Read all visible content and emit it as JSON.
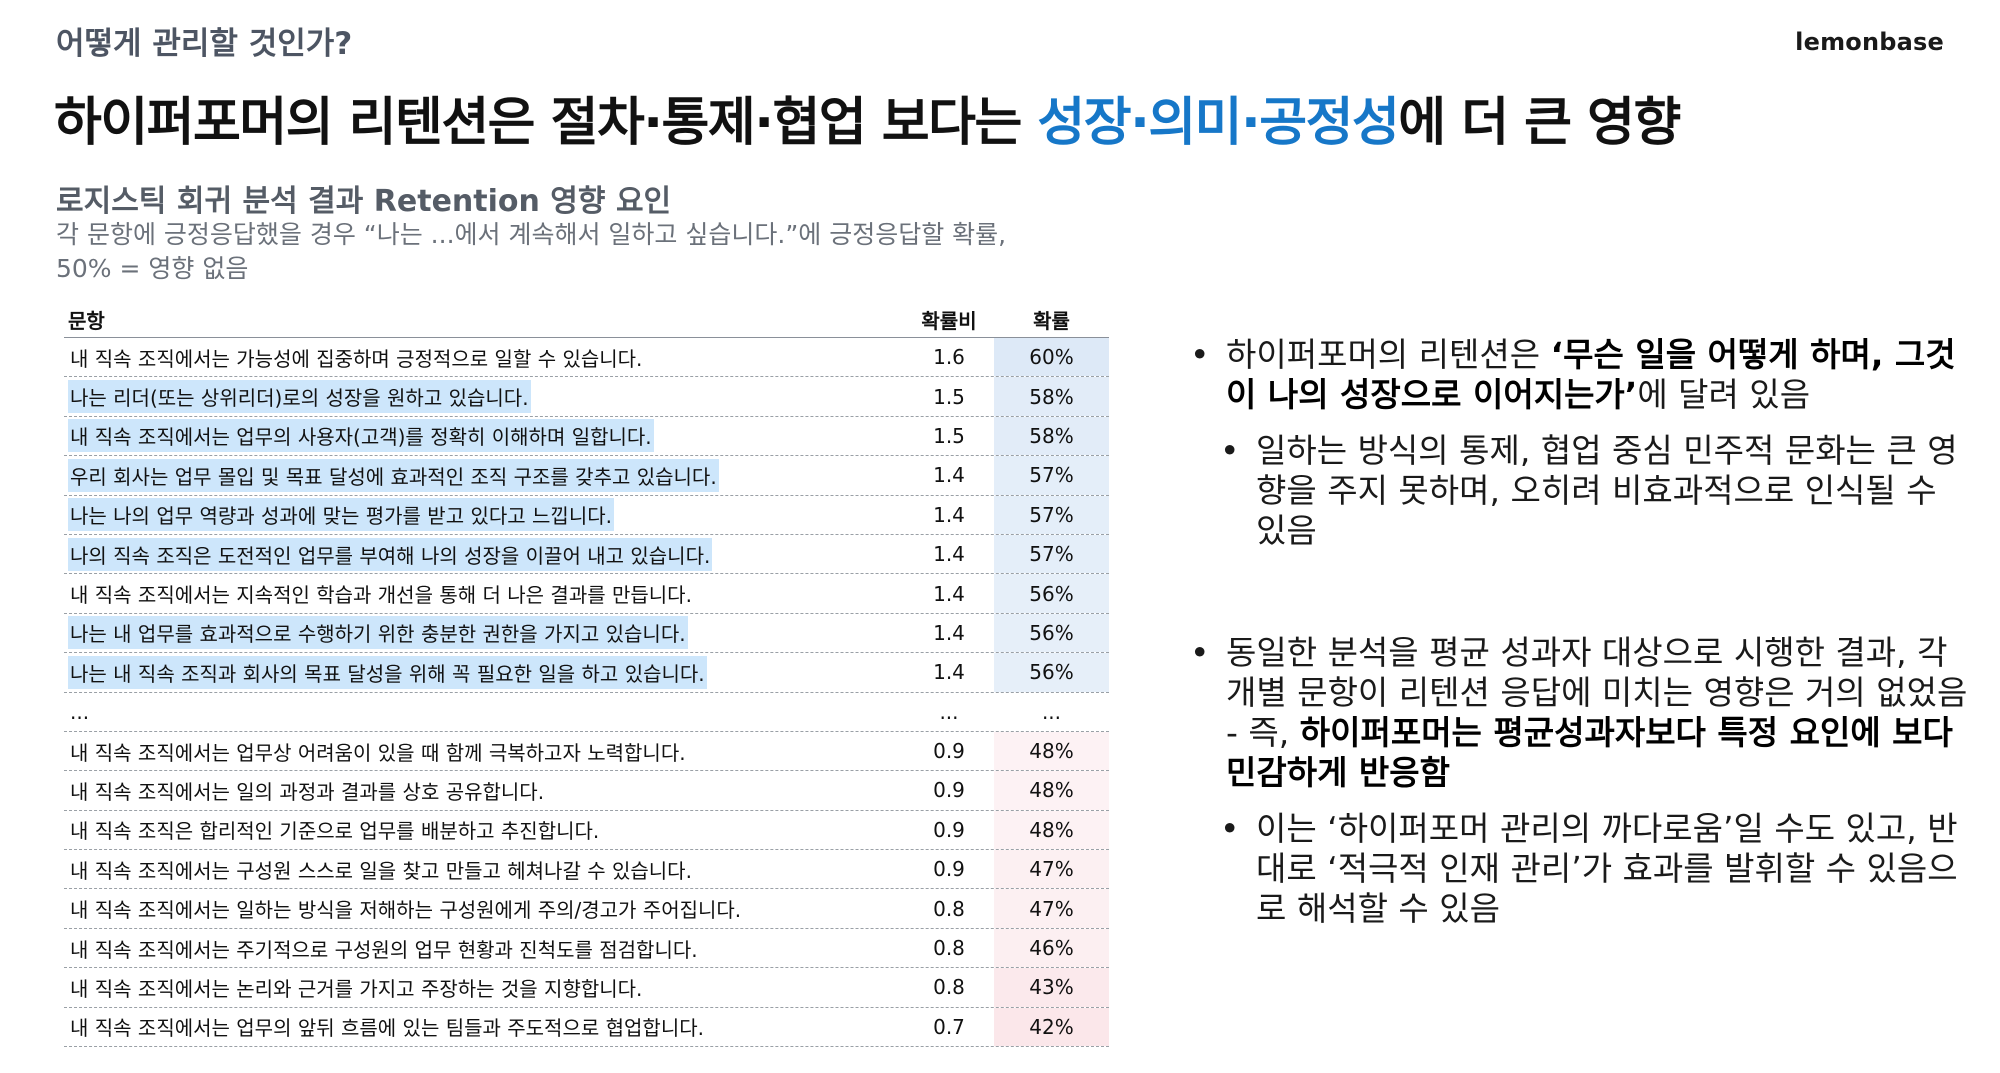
{
  "header": {
    "section_label": "어떻게 관리할 것인가?",
    "brand": "lemonbase",
    "headline_part1": "하이퍼포머의 리텐션은 절차·통제·협업 보다는 ",
    "headline_highlight": "성장·의미·공정성",
    "headline_part2": "에 더 큰 영향"
  },
  "analysis": {
    "subtitle": "로지스틱 회귀 분석 결과 Retention 영향 요인",
    "desc_line1": "각 문항에 긍정응답했을 경우 “나는 ...에서 계속해서 일하고 싶습니다.”에 긍정응답할 확률,",
    "desc_line2": "50% = 영향 없음"
  },
  "table": {
    "headers": {
      "question": "문항",
      "odds": "확률비",
      "prob": "확률"
    },
    "rows": [
      {
        "q": "내 직속 조직에서는 가능성에 집중하며 긍정적으로 일할 수 있습니다.",
        "odds": "1.6",
        "prob": "60%",
        "p": 60,
        "hl": false
      },
      {
        "q": "나는 리더(또는 상위리더)로의 성장을 원하고 있습니다.",
        "odds": "1.5",
        "prob": "58%",
        "p": 58,
        "hl": true
      },
      {
        "q": "내 직속 조직에서는 업무의 사용자(고객)를 정확히 이해하며 일합니다.",
        "odds": "1.5",
        "prob": "58%",
        "p": 58,
        "hl": true
      },
      {
        "q": "우리 회사는 업무 몰입 및 목표 달성에 효과적인 조직 구조를 갖추고 있습니다.",
        "odds": "1.4",
        "prob": "57%",
        "p": 57,
        "hl": true
      },
      {
        "q": "나는 나의 업무 역량과 성과에 맞는 평가를 받고 있다고 느낍니다.",
        "odds": "1.4",
        "prob": "57%",
        "p": 57,
        "hl": true
      },
      {
        "q": "나의 직속 조직은 도전적인 업무를 부여해 나의 성장을 이끌어 내고 있습니다.",
        "odds": "1.4",
        "prob": "57%",
        "p": 57,
        "hl": true
      },
      {
        "q": "내 직속 조직에서는 지속적인 학습과 개선을 통해 더 나은 결과를 만듭니다.",
        "odds": "1.4",
        "prob": "56%",
        "p": 56,
        "hl": false
      },
      {
        "q": "나는 내 업무를 효과적으로 수행하기 위한 충분한 권한을 가지고 있습니다.",
        "odds": "1.4",
        "prob": "56%",
        "p": 56,
        "hl": true
      },
      {
        "q": "나는 내 직속 조직과 회사의 목표 달성을 위해 꼭 필요한 일을 하고 있습니다.",
        "odds": "1.4",
        "prob": "56%",
        "p": 56,
        "hl": true
      },
      {
        "q": "...",
        "odds": "...",
        "prob": "...",
        "p": null,
        "hl": false
      },
      {
        "q": "내 직속 조직에서는 업무상 어려움이 있을 때 함께 극복하고자 노력합니다.",
        "odds": "0.9",
        "prob": "48%",
        "p": 48,
        "hl": false
      },
      {
        "q": "내 직속 조직에서는 일의 과정과 결과를 상호 공유합니다.",
        "odds": "0.9",
        "prob": "48%",
        "p": 48,
        "hl": false
      },
      {
        "q": "내 직속 조직은 합리적인 기준으로 업무를 배분하고 추진합니다.",
        "odds": "0.9",
        "prob": "48%",
        "p": 48,
        "hl": false
      },
      {
        "q": "내 직속 조직에서는 구성원 스스로 일을 찾고 만들고 헤쳐나갈 수 있습니다.",
        "odds": "0.9",
        "prob": "47%",
        "p": 47,
        "hl": false
      },
      {
        "q": "내 직속 조직에서는 일하는 방식을 저해하는 구성원에게 주의/경고가 주어집니다.",
        "odds": "0.8",
        "prob": "47%",
        "p": 47,
        "hl": false
      },
      {
        "q": "내 직속 조직에서는 주기적으로 구성원의 업무 현황과 진척도를 점검합니다.",
        "odds": "0.8",
        "prob": "46%",
        "p": 46,
        "hl": false
      },
      {
        "q": "내 직속 조직에서는 논리와 근거를 가지고 주장하는 것을 지향합니다.",
        "odds": "0.8",
        "prob": "43%",
        "p": 43,
        "hl": false
      },
      {
        "q": "내 직속 조직에서는 업무의 앞뒤 흐름에 있는 팀들과 주도적으로 협업합니다.",
        "odds": "0.7",
        "prob": "42%",
        "p": 42,
        "hl": false
      }
    ]
  },
  "bullets": {
    "dot": "•",
    "b1_pre": "하이퍼포머의 리텐션은 ",
    "b1_bold": "‘무슨 일을 어떻게 하며, 그것이 나의 성장으로 이어지는가’",
    "b1_post": "에 달려 있음",
    "b1_sub": "일하는 방식의 통제, 협업 중심 민주적 문화는 큰 영향을 주지 못하며, 오히려 비효과적으로 인식될 수 있음",
    "b2_pre": "동일한 분석을 평균 성과자 대상으로 시행한 결과, 각 개별 문항이 리텐션 응답에 미치는 영향은 거의 없었음 - 즉, ",
    "b2_bold": "하이퍼포머는 평균성과자보다 특정 요인에 보다 민감하게 반응함",
    "b2_sub": "이는 ‘하이퍼포머 관리의 까다로움’일 수도 있고, 반대로 ‘적극적 인재 관리’가 효과를 발휘할 수 있음으로 해석할 수 있음"
  },
  "colors": {
    "accent": "#1677c8",
    "highlight": "#cde6fb",
    "prob_high": "#dde9f7",
    "prob_low": "#fbe7ea"
  }
}
